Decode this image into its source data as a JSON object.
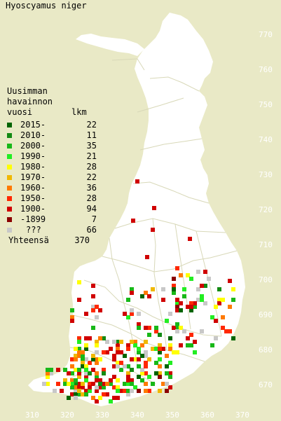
{
  "title": "Hyoscyamus niger",
  "legend": {
    "heading": [
      "Uusimman",
      "havainnon",
      "vuosi"
    ],
    "count_header": "lkm",
    "items": [
      {
        "label": "2015-",
        "count": "22",
        "color": "#006400"
      },
      {
        "label": "2010-",
        "count": "11",
        "color": "#138a13"
      },
      {
        "label": "2000-",
        "count": "35",
        "color": "#18b818"
      },
      {
        "label": "1990-",
        "count": "21",
        "color": "#22ee22"
      },
      {
        "label": "1980-",
        "count": "28",
        "color": "#ffff00"
      },
      {
        "label": "1970-",
        "count": "22",
        "color": "#f0b800"
      },
      {
        "label": "1960-",
        "count": "36",
        "color": "#ff7a00"
      },
      {
        "label": "1950-",
        "count": "28",
        "color": "#ff2800"
      },
      {
        "label": "1900-",
        "count": "94",
        "color": "#d00000"
      },
      {
        "label": "-1899",
        "count": "7",
        "color": "#8b0000"
      },
      {
        "label": "???",
        "count": "66",
        "color": "#c8c8c8"
      }
    ],
    "total_label": "Yhteensä",
    "total": "370"
  },
  "axis": {
    "x_ticks": [
      "310",
      "320",
      "330",
      "340",
      "350",
      "360",
      "370"
    ],
    "y_ticks": [
      "770",
      "760",
      "750",
      "740",
      "730",
      "720",
      "710",
      "700",
      "690",
      "680",
      "670"
    ]
  },
  "colors": {
    "background": "#e9e9c6",
    "land": "#ffffff",
    "border": "#d8d8b8",
    "tick_text": "#ffffff"
  }
}
